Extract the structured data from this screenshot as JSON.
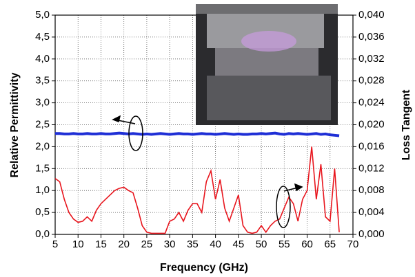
{
  "chart_data": {
    "type": "line",
    "x_label": "Frequency (GHz)",
    "y_label": "Relative Permittivity",
    "y2_label": "Loss Tangent",
    "x": [
      5,
      6,
      7,
      8,
      9,
      10,
      11,
      12,
      13,
      14,
      15,
      16,
      17,
      18,
      19,
      20,
      21,
      22,
      23,
      24,
      25,
      26,
      27,
      28,
      29,
      30,
      31,
      32,
      33,
      34,
      35,
      36,
      37,
      38,
      39,
      40,
      41,
      42,
      43,
      44,
      45,
      46,
      47,
      48,
      49,
      50,
      51,
      52,
      53,
      54,
      55,
      56,
      57,
      58,
      59,
      60,
      61,
      62,
      63,
      64,
      65,
      66,
      67
    ],
    "series": [
      {
        "name": "Relative Permittivity",
        "color": "#1f2fd6",
        "values": [
          2.3,
          2.3,
          2.29,
          2.29,
          2.3,
          2.29,
          2.29,
          2.3,
          2.29,
          2.29,
          2.3,
          2.29,
          2.29,
          2.3,
          2.31,
          2.3,
          2.29,
          2.3,
          2.29,
          2.28,
          2.29,
          2.28,
          2.29,
          2.3,
          2.29,
          2.28,
          2.29,
          2.3,
          2.29,
          2.29,
          2.28,
          2.29,
          2.3,
          2.29,
          2.29,
          2.28,
          2.29,
          2.3,
          2.29,
          2.28,
          2.29,
          2.28,
          2.28,
          2.29,
          2.29,
          2.3,
          2.29,
          2.3,
          2.31,
          2.29,
          2.28,
          2.3,
          2.29,
          2.3,
          2.29,
          2.28,
          2.29,
          2.3,
          2.28,
          2.29,
          2.27,
          2.26,
          2.25
        ]
      },
      {
        "name": "Loss Tangent",
        "color": "#e8141c",
        "axis": "y2",
        "values": [
          0.0102,
          0.0096,
          0.0064,
          0.004,
          0.0028,
          0.0022,
          0.0024,
          0.0032,
          0.0024,
          0.0044,
          0.0056,
          0.0064,
          0.0072,
          0.008,
          0.0084,
          0.0086,
          0.008,
          0.0076,
          0.0048,
          0.0016,
          0.0004,
          0.0002,
          0.0002,
          0.0002,
          0.0002,
          0.0024,
          0.0028,
          0.004,
          0.0024,
          0.0044,
          0.0056,
          0.0056,
          0.004,
          0.0096,
          0.0116,
          0.0064,
          0.01,
          0.0048,
          0.0024,
          0.0048,
          0.0072,
          0.0016,
          0.0004,
          0.0002,
          0.0004,
          0.0016,
          0.0004,
          0.0016,
          0.0024,
          0.0028,
          0.0048,
          0.0068,
          0.0056,
          0.0024,
          0.0064,
          0.008,
          0.016,
          0.0064,
          0.0128,
          0.0032,
          0.0024,
          0.012,
          0.0004
        ]
      }
    ],
    "xlim": [
      5,
      70
    ],
    "xticks": [
      5,
      10,
      15,
      20,
      25,
      30,
      35,
      40,
      45,
      50,
      55,
      60,
      65,
      70
    ],
    "ylim": [
      0,
      5
    ],
    "yticks": [
      {
        "value": 0,
        "label": "0,0"
      },
      {
        "value": 0.5,
        "label": "0,5"
      },
      {
        "value": 1,
        "label": "1,0"
      },
      {
        "value": 1.5,
        "label": "1,5"
      },
      {
        "value": 2,
        "label": "2,0"
      },
      {
        "value": 2.5,
        "label": "2,5"
      },
      {
        "value": 3,
        "label": "3,0"
      },
      {
        "value": 3.5,
        "label": "3,5"
      },
      {
        "value": 4,
        "label": "4,0"
      },
      {
        "value": 4.5,
        "label": "4,5"
      },
      {
        "value": 5,
        "label": "5,0"
      }
    ],
    "y2lim": [
      0,
      0.04
    ],
    "y2ticks": [
      {
        "value": 0,
        "label": "0,000"
      },
      {
        "value": 0.004,
        "label": "0,004"
      },
      {
        "value": 0.008,
        "label": "0,008"
      },
      {
        "value": 0.012,
        "label": "0,012"
      },
      {
        "value": 0.016,
        "label": "0,016"
      },
      {
        "value": 0.02,
        "label": "0,020"
      },
      {
        "value": 0.024,
        "label": "0,024"
      },
      {
        "value": 0.028,
        "label": "0,028"
      },
      {
        "value": 0.032,
        "label": "0,032"
      },
      {
        "value": 0.036,
        "label": "0,036"
      },
      {
        "value": 0.04,
        "label": "0,040"
      }
    ],
    "grid": true
  }
}
